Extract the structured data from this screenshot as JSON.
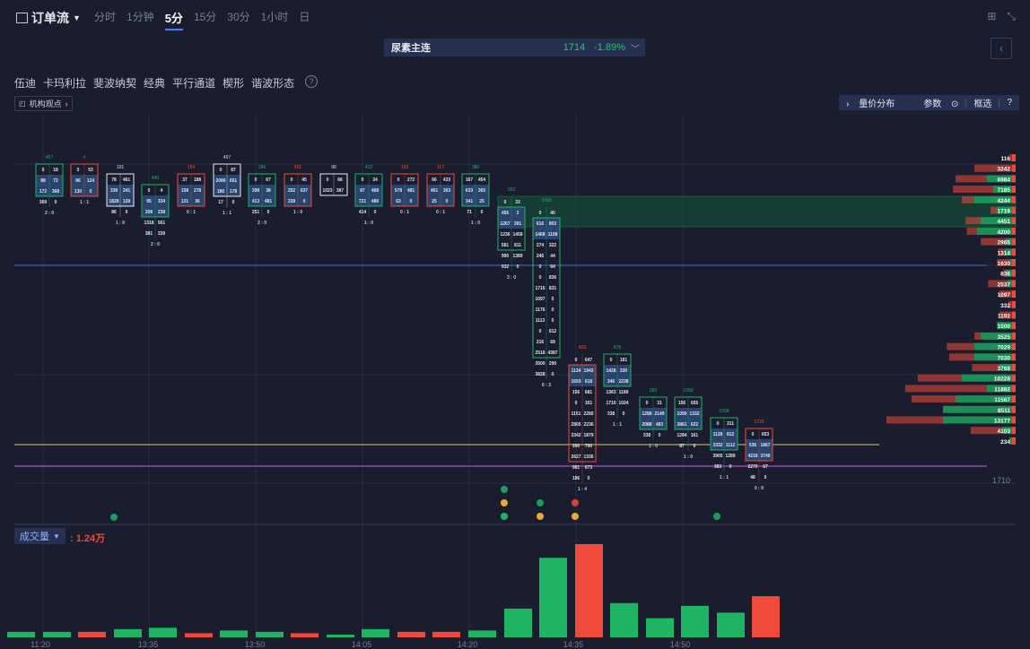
{
  "header": {
    "title": "订单流",
    "tabs": [
      {
        "label": "分时",
        "active": false
      },
      {
        "label": "1分钟",
        "active": false
      },
      {
        "label": "5分",
        "active": true
      },
      {
        "label": "15分",
        "active": false
      },
      {
        "label": "30分",
        "active": false
      },
      {
        "label": "1小时",
        "active": false
      },
      {
        "label": "日",
        "active": false
      }
    ],
    "icons": [
      "grid-icon",
      "collapse-icon"
    ]
  },
  "symbol": {
    "name": "尿素主连",
    "price": "1714",
    "change": "-1.89%"
  },
  "toolbar": {
    "items": [
      "伍迪",
      "卡玛利拉",
      "斐波纳契",
      "经典",
      "平行通道",
      "楔形",
      "谐波形态"
    ],
    "help": "?"
  },
  "institution": {
    "label": "机构观点"
  },
  "right_tools": {
    "profile": "量价分布",
    "params": "参数",
    "frame": "框选",
    "help": "?"
  },
  "volume_panel": {
    "label": "成交量",
    "value": ": 1.24万"
  },
  "colors": {
    "bg": "#1a1d2e",
    "up": "#1fb463",
    "down": "#f04a3a",
    "accent": "#4a7bff"
  },
  "chart_data": {
    "type": "bar",
    "subtype": "footprint-orderflow",
    "symbol": "尿素主连",
    "interval": "5分",
    "x_ticks": [
      "11:20",
      "13:35",
      "13:50",
      "14:05",
      "14:20",
      "14:35",
      "14:50"
    ],
    "price_axis_last": "1710",
    "candles": [
      {
        "dir": "up",
        "top": "457",
        "rows": [
          [
            "0",
            "18"
          ],
          [
            "88",
            "72"
          ],
          [
            "172",
            "368"
          ],
          [
            "369",
            "0"
          ]
        ],
        "bot": "2 : 0"
      },
      {
        "dir": "dn",
        "top": "4",
        "rows": [
          [
            "0",
            "53"
          ],
          [
            "86",
            "124"
          ],
          [
            "130",
            "0"
          ]
        ],
        "bot": "1 : 1"
      },
      {
        "dir": "wh",
        "top": "191",
        "rows": [
          [
            "78",
            "461"
          ],
          [
            "338",
            "241"
          ],
          [
            "1828",
            "128"
          ],
          [
            "86",
            "0"
          ]
        ],
        "bot": "1 : 0"
      },
      {
        "dir": "up",
        "top": "490",
        "rows": [
          [
            "0",
            "4"
          ],
          [
            "95",
            "334"
          ],
          [
            "208",
            "238"
          ],
          [
            "1318",
            "561"
          ],
          [
            "381",
            "339"
          ]
        ],
        "bot": "2 : 0"
      },
      {
        "dir": "dn",
        "top": "154",
        "rows": [
          [
            "37",
            "188"
          ],
          [
            "158",
            "278"
          ],
          [
            "131",
            "36"
          ]
        ],
        "bot": "0 : 1"
      },
      {
        "dir": "wh",
        "top": "457",
        "rows": [
          [
            "0",
            "87"
          ],
          [
            "2086",
            "651"
          ],
          [
            "180",
            "178"
          ],
          [
            "17",
            "0"
          ]
        ],
        "bot": "1 : 1"
      },
      {
        "dir": "up",
        "top": "286",
        "rows": [
          [
            "0",
            "67"
          ],
          [
            "398",
            "38"
          ],
          [
            "413",
            "481"
          ],
          [
            "251",
            "0"
          ]
        ],
        "bot": "2 : 0"
      },
      {
        "dir": "dn",
        "top": "601",
        "rows": [
          [
            "0",
            "45"
          ],
          [
            "252",
            "637"
          ],
          [
            "338",
            "0"
          ]
        ],
        "bot": "1 : 0"
      },
      {
        "dir": "wh",
        "top": "98",
        "rows": [
          [
            "0",
            "66"
          ],
          [
            "1023",
            "387"
          ]
        ],
        "bot": ""
      },
      {
        "dir": "up",
        "top": "412",
        "rows": [
          [
            "0",
            "34"
          ],
          [
            "87",
            "468"
          ],
          [
            "721",
            "480"
          ],
          [
            "414",
            "0"
          ]
        ],
        "bot": "1 : 0"
      },
      {
        "dir": "dn",
        "top": "133",
        "rows": [
          [
            "0",
            "272"
          ],
          [
            "578",
            "481"
          ],
          [
            "63",
            "0"
          ]
        ],
        "bot": "0 : 1"
      },
      {
        "dir": "dn",
        "top": "117",
        "rows": [
          [
            "66",
            "433"
          ],
          [
            "461",
            "363"
          ],
          [
            "25",
            "0"
          ]
        ],
        "bot": "0 : 1"
      },
      {
        "dir": "up",
        "top": "386",
        "rows": [
          [
            "167",
            "454"
          ],
          [
            "633",
            "365"
          ],
          [
            "341",
            "25"
          ],
          [
            "71",
            "0"
          ]
        ],
        "bot": "1 : 0"
      },
      {
        "dir": "up",
        "top": "602",
        "rows": [
          [
            "0",
            "33"
          ],
          [
            "456",
            "2"
          ],
          [
            "1267",
            "391"
          ],
          [
            "1236",
            "1458"
          ],
          [
            "581",
            "811"
          ],
          [
            "990",
            "1389"
          ],
          [
            "932",
            "0"
          ]
        ],
        "bot": "3 : 0"
      },
      {
        "dir": "up",
        "top": "2430",
        "rows": [
          [
            "0",
            "40"
          ],
          [
            "616",
            "803"
          ],
          [
            "1468",
            "1108"
          ],
          [
            "274",
            "322"
          ],
          [
            "246",
            "44"
          ],
          [
            "0",
            "64"
          ],
          [
            "0",
            "836"
          ],
          [
            "1716",
            "831"
          ],
          [
            "1097",
            "0"
          ],
          [
            "1176",
            "0"
          ],
          [
            "1113",
            "0"
          ],
          [
            "0",
            "612"
          ],
          [
            "216",
            "69"
          ],
          [
            "2518",
            "4387"
          ],
          [
            "3500",
            "290"
          ],
          [
            "3828",
            "0"
          ]
        ],
        "bot": "6 : 3"
      },
      {
        "dir": "dn",
        "top": "803",
        "rows": [
          [
            "0",
            "647"
          ],
          [
            "1134",
            "1943"
          ],
          [
            "1659",
            "618"
          ],
          [
            "156",
            "681"
          ],
          [
            "0",
            "161"
          ],
          [
            "1151",
            "2280"
          ],
          [
            "2805",
            "2236"
          ],
          [
            "3342",
            "1879"
          ],
          [
            "390",
            "790"
          ],
          [
            "2627",
            "1336"
          ],
          [
            "981",
            "673"
          ],
          [
            "186",
            "0"
          ]
        ],
        "bot": "1 : 4"
      },
      {
        "dir": "up",
        "top": "878",
        "rows": [
          [
            "0",
            "181"
          ],
          [
            "1428",
            "330"
          ],
          [
            "346",
            "2238"
          ],
          [
            "1363",
            "1189"
          ],
          [
            "1710",
            "1024"
          ],
          [
            "338",
            "0"
          ]
        ],
        "bot": "1 : 1"
      },
      {
        "dir": "up",
        "top": "283",
        "rows": [
          [
            "0",
            "31"
          ],
          [
            "1288",
            "2149"
          ],
          [
            "2088",
            "483"
          ],
          [
            "338",
            "0"
          ]
        ],
        "bot": "1 : 0"
      },
      {
        "dir": "up",
        "top": "1350",
        "rows": [
          [
            "156",
            "655"
          ],
          [
            "1090",
            "1332"
          ],
          [
            "3861",
            "622"
          ],
          [
            "1284",
            "161"
          ],
          [
            "87",
            "0"
          ]
        ],
        "bot": "1 : 0"
      },
      {
        "dir": "up",
        "top": "1008",
        "rows": [
          [
            "0",
            "311"
          ],
          [
            "1128",
            "812"
          ],
          [
            "3332",
            "1112"
          ],
          [
            "3905",
            "1289"
          ],
          [
            "383",
            "0"
          ]
        ],
        "bot": "1 : 1"
      },
      {
        "dir": "dn",
        "top": "1728",
        "rows": [
          [
            "0",
            "653"
          ],
          [
            "536",
            "1867"
          ],
          [
            "4218",
            "3749"
          ],
          [
            "2270",
            "67"
          ],
          [
            "48",
            "0"
          ]
        ],
        "bot": "0 : 0"
      }
    ],
    "price_profile": [
      {
        "value": "116",
        "buy": 0,
        "sell": 0.02
      },
      {
        "value": "3242",
        "buy": 0,
        "sell": 0.3
      },
      {
        "value": "6984",
        "buy": 0.2,
        "sell": 0.25
      },
      {
        "value": "7185",
        "buy": 0.15,
        "sell": 0.32
      },
      {
        "value": "4244",
        "buy": 0.3,
        "sell": 0.1
      },
      {
        "value": "1719",
        "buy": 0.12,
        "sell": 0.05
      },
      {
        "value": "4451",
        "buy": 0.25,
        "sell": 0.12
      },
      {
        "value": "4200",
        "buy": 0.28,
        "sell": 0.08
      },
      {
        "value": "2965",
        "buy": 0.05,
        "sell": 0.2
      },
      {
        "value": "1314",
        "buy": 0.06,
        "sell": 0.05
      },
      {
        "value": "1630",
        "buy": 0.02,
        "sell": 0.1
      },
      {
        "value": "836",
        "buy": 0.05,
        "sell": 0.02
      },
      {
        "value": "2537",
        "buy": 0.04,
        "sell": 0.15
      },
      {
        "value": "1097",
        "buy": 0,
        "sell": 0.1
      },
      {
        "value": "332",
        "buy": 0,
        "sell": 0.03
      },
      {
        "value": "1192",
        "buy": 0,
        "sell": 0.1
      },
      {
        "value": "1500",
        "buy": 0.12,
        "sell": 0
      },
      {
        "value": "3525",
        "buy": 0.25,
        "sell": 0.05
      },
      {
        "value": "7029",
        "buy": 0.3,
        "sell": 0.22
      },
      {
        "value": "7030",
        "buy": 0.3,
        "sell": 0.2
      },
      {
        "value": "3768",
        "buy": 0.1,
        "sell": 0.22
      },
      {
        "value": "10228",
        "buy": 0.4,
        "sell": 0.35
      },
      {
        "value": "11882",
        "buy": 0.2,
        "sell": 0.65
      },
      {
        "value": "11567",
        "buy": 0.45,
        "sell": 0.35
      },
      {
        "value": "8511",
        "buy": 0.55,
        "sell": 0
      },
      {
        "value": "13177",
        "buy": 0.55,
        "sell": 0.45
      },
      {
        "value": "4103",
        "buy": 0.08,
        "sell": 0.25
      },
      {
        "value": "234",
        "buy": 0.02,
        "sell": 0
      }
    ],
    "volume_bars": [
      {
        "dir": "up",
        "value": 4
      },
      {
        "dir": "up",
        "value": 4
      },
      {
        "dir": "dn",
        "value": 4
      },
      {
        "dir": "up",
        "value": 6
      },
      {
        "dir": "up",
        "value": 7
      },
      {
        "dir": "dn",
        "value": 3
      },
      {
        "dir": "up",
        "value": 5
      },
      {
        "dir": "up",
        "value": 4
      },
      {
        "dir": "dn",
        "value": 3
      },
      {
        "dir": "up",
        "value": 2
      },
      {
        "dir": "up",
        "value": 6
      },
      {
        "dir": "dn",
        "value": 4
      },
      {
        "dir": "dn",
        "value": 4
      },
      {
        "dir": "up",
        "value": 5
      },
      {
        "dir": "up",
        "value": 21
      },
      {
        "dir": "up",
        "value": 58
      },
      {
        "dir": "dn",
        "value": 68
      },
      {
        "dir": "up",
        "value": 25
      },
      {
        "dir": "up",
        "value": 14
      },
      {
        "dir": "up",
        "value": 23
      },
      {
        "dir": "up",
        "value": 18
      },
      {
        "dir": "dn",
        "value": 30
      }
    ],
    "grid": true
  }
}
